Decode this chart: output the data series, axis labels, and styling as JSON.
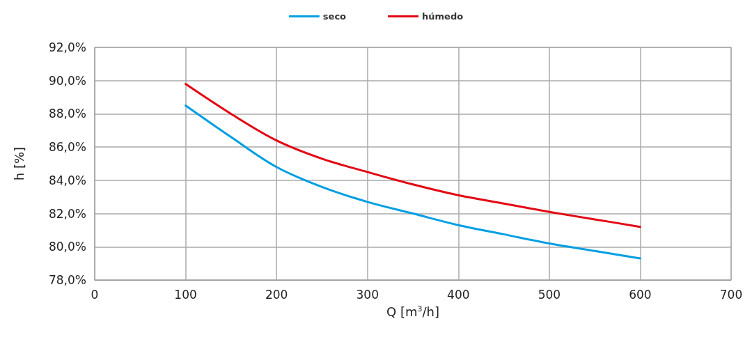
{
  "chart_data": {
    "type": "line",
    "xlabel": "Q [m$^{3}$/h]",
    "ylabel": "h [%]",
    "x": [
      100,
      150,
      200,
      250,
      300,
      350,
      400,
      450,
      500,
      550,
      600
    ],
    "series": [
      {
        "name": "seco",
        "color": "#009fe3",
        "values": [
          88.5,
          86.6,
          84.8,
          83.6,
          82.7,
          82.0,
          81.3,
          80.75,
          80.2,
          79.75,
          79.3
        ]
      },
      {
        "name": "húmedo",
        "color": "#e30613",
        "values": [
          89.8,
          88.0,
          86.4,
          85.3,
          84.5,
          83.75,
          83.1,
          82.6,
          82.1,
          81.65,
          81.2
        ]
      }
    ],
    "xlim": [
      0,
      700
    ],
    "xticks": [
      0,
      100,
      200,
      300,
      400,
      500,
      600,
      700
    ],
    "ylim": [
      78,
      92
    ],
    "yticks": [
      {
        "value": 78,
        "label": "78,0%"
      },
      {
        "value": 80,
        "label": "80,0%"
      },
      {
        "value": 82,
        "label": "82,0%"
      },
      {
        "value": 84,
        "label": "84,0%"
      },
      {
        "value": 86,
        "label": "86,0%"
      },
      {
        "value": 88,
        "label": "88,0%"
      },
      {
        "value": 90,
        "label": "90,0%"
      },
      {
        "value": 92,
        "label": "92,0%"
      }
    ],
    "grid": true,
    "legend": "top",
    "marker": "none",
    "line_style": "solid"
  }
}
